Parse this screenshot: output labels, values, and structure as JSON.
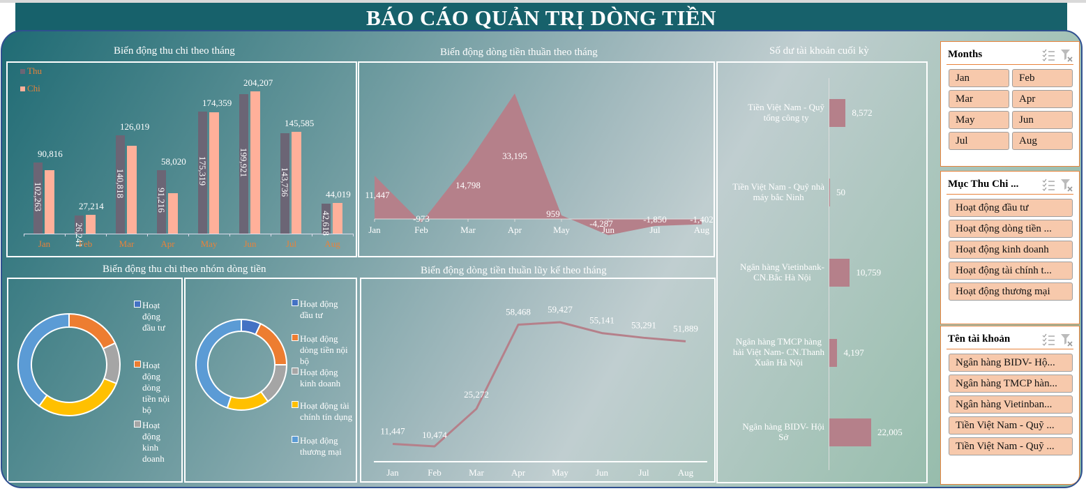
{
  "header": {
    "title": "BÁO CÁO QUẢN TRỊ DÒNG TIỀN"
  },
  "colors": {
    "header_bg": "#17616b",
    "thu": "#6b6575",
    "chi": "#ffb09a",
    "net": "#b5808a",
    "slicer_btn": "#f7c9ac",
    "slicer_border": "#e8823a",
    "axis_label_orange": "#e8823a"
  },
  "charts": {
    "thu_chi": {
      "title": "Biến động thu chi theo tháng",
      "legend": [
        "Thu",
        "Chi"
      ]
    },
    "net_monthly": {
      "title": "Biến động dòng tiền thuần theo tháng"
    },
    "balance": {
      "title": "Số dư tài khoản cuối kỳ"
    },
    "group": {
      "title": "Biến động thu chi theo nhóm dòng tiền"
    },
    "cumulative": {
      "title": "Biến động dòng tiền thuần lũy kế theo tháng"
    }
  },
  "chart_data": [
    {
      "type": "bar",
      "title": "Biến động thu chi theo tháng",
      "categories": [
        "Jan",
        "Feb",
        "Mar",
        "Apr",
        "May",
        "Jun",
        "Jul",
        "Aug"
      ],
      "series": [
        {
          "name": "Thu",
          "values": [
            102263,
            26241,
            140818,
            91216,
            175319,
            199921,
            143736,
            42618
          ],
          "labels": [
            "102,263",
            "26,241",
            "140,818",
            "91,216",
            "175,319",
            "199,921",
            "143,736",
            "42,618"
          ]
        },
        {
          "name": "Chi",
          "values": [
            90816,
            27214,
            126019,
            58020,
            174359,
            204207,
            145585,
            44019
          ],
          "labels": [
            "90,816",
            "27,214",
            "126,019",
            "58,020",
            "174,359",
            "204,207",
            "145,585",
            "44,019"
          ]
        }
      ],
      "legend_position": "top-left",
      "grid": false
    },
    {
      "type": "area",
      "title": "Biến động dòng tiền thuần theo tháng",
      "categories": [
        "Jan",
        "Feb",
        "Mar",
        "Apr",
        "May",
        "Jun",
        "Jul",
        "Aug"
      ],
      "values": [
        11447,
        -973,
        14798,
        33195,
        959,
        -4287,
        -1850,
        -1402
      ],
      "labels": [
        "11,447",
        "-973",
        "14,798",
        "33,195",
        "959",
        "-4,287",
        "-1,850",
        "-1,402"
      ]
    },
    {
      "type": "bar",
      "orientation": "horizontal",
      "title": "Số dư tài khoản cuối kỳ",
      "categories": [
        "Tiền Việt Nam - Quỹ tổng công ty",
        "Tiền Việt Nam - Quỹ nhà máy bắc Ninh",
        "Ngân hàng Vietinbank- CN.Bắc Hà Nội",
        "Ngân hàng TMCP hàng hải Việt Nam- CN.Thanh Xuân Hà Nội",
        "Ngân hàng BIDV- Hội Sở"
      ],
      "category_lines": [
        [
          "Tiền Việt Nam - Quỹ",
          "tổng công ty"
        ],
        [
          "Tiền Việt Nam - Quỹ nhà",
          "máy bắc Ninh"
        ],
        [
          "Ngân hàng Vietinbank-",
          "CN.Bắc Hà Nội"
        ],
        [
          "Ngân hàng TMCP hàng",
          "hải Việt Nam- CN.Thanh",
          "Xuân Hà Nội"
        ],
        [
          "Ngân hàng BIDV- Hội",
          "Sở"
        ]
      ],
      "values": [
        8572,
        50,
        10759,
        4197,
        22005
      ],
      "labels": [
        "8,572",
        "50",
        "10,759",
        "4,197",
        "22,005"
      ]
    },
    {
      "type": "pie",
      "subtype": "doughnut",
      "title": "Biến động thu chi theo nhóm dòng tiền (Thu)",
      "categories": [
        "Hoạt động đầu tư",
        "Hoạt động dòng tiền nội bộ",
        "Hoạt động kinh doanh",
        "Hoạt động tài chính tín dụng",
        "Hoạt động thương mại"
      ],
      "legend_lines": [
        [
          "Hoạt",
          "động",
          "đầu tư"
        ],
        [
          "Hoạt",
          "động",
          "dòng",
          "tiền nội",
          "bộ"
        ],
        [
          "Hoạt",
          "động",
          "kinh",
          "doanh"
        ]
      ],
      "values_pct": [
        0,
        18,
        13,
        29,
        40
      ]
    },
    {
      "type": "pie",
      "subtype": "doughnut",
      "title": "Biến động thu chi theo nhóm dòng tiền (Chi)",
      "categories": [
        "Hoạt động đầu tư",
        "Hoạt động dòng tiền nội bộ",
        "Hoạt động kinh doanh",
        "Hoạt động tài chính tín dụng",
        "Hoạt động thương mại"
      ],
      "legend_lines": [
        [
          "Hoạt động",
          "đầu tư"
        ],
        [
          "Hoạt động",
          "dòng tiền nội",
          "bộ"
        ],
        [
          "Hoạt động",
          "kinh doanh"
        ],
        [
          "Hoạt động tài",
          "chính tín dụng"
        ],
        [
          "Hoạt động",
          "thương mại"
        ]
      ],
      "values_pct": [
        7,
        18,
        15,
        15,
        45
      ]
    },
    {
      "type": "line",
      "title": "Biến động dòng tiền thuần lũy kế theo tháng",
      "categories": [
        "Jan",
        "Feb",
        "Mar",
        "Apr",
        "May",
        "Jun",
        "Jul",
        "Aug"
      ],
      "values": [
        11447,
        10474,
        25272,
        58468,
        59427,
        55141,
        53291,
        51889
      ],
      "labels": [
        "11,447",
        "10,474",
        "25,272",
        "58,468",
        "59,427",
        "55,141",
        "53,291",
        "51,889"
      ]
    }
  ],
  "donut_colors": [
    "#4472c4",
    "#ed7d31",
    "#a5a5a5",
    "#ffc000",
    "#5b9bd5"
  ],
  "slicers": [
    {
      "title": "Months",
      "items": [
        "Jan",
        "Feb",
        "Mar",
        "Apr",
        "May",
        "Jun",
        "Jul",
        "Aug"
      ]
    },
    {
      "title": "Mục Thu Chi ...",
      "items": [
        "Hoạt động đầu tư",
        "Hoạt động dòng tiền ...",
        "Hoạt động kinh doanh",
        "Hoạt động tài chính t...",
        "Hoạt động thương mại"
      ]
    },
    {
      "title": "Tên tài khoản",
      "items": [
        "Ngân hàng BIDV- Hộ...",
        "Ngân hàng TMCP hàn...",
        "Ngân hàng Vietinban...",
        "Tiền Việt Nam - Quỹ ...",
        "Tiền Việt Nam - Quỹ ..."
      ]
    }
  ]
}
